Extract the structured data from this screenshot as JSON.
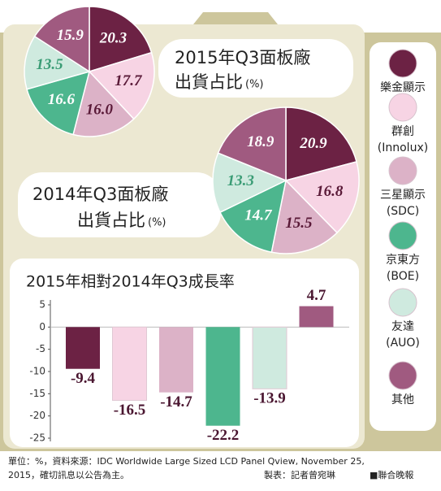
{
  "chart_data": [
    {
      "type": "pie",
      "title": "2015年Q3面板廠",
      "subtitle": "出貨占比",
      "unit": "(%)",
      "categories": [
        "樂金顯示",
        "群創 (Innolux)",
        "三星顯示 (SDC)",
        "京東方 (BOE)",
        "友達 (AUO)",
        "其他"
      ],
      "values": [
        20.3,
        17.7,
        16.0,
        16.6,
        13.5,
        15.9
      ],
      "value_labels": [
        "20.3",
        "17.7",
        "16.0",
        "16.6",
        "13.5",
        "15.9"
      ],
      "colors": [
        "#6c2244",
        "#f7d4e4",
        "#dcb2c7",
        "#4db68e",
        "#cfeadf",
        "#a05a80"
      ],
      "label_colors": [
        "#ffffff",
        "#5a1a38",
        "#5a1a38",
        "#ffffff",
        "#3a9c75",
        "#ffffff"
      ]
    },
    {
      "type": "pie",
      "title": "2014年Q3面板廠",
      "subtitle": "出貨占比",
      "unit": "(%)",
      "categories": [
        "樂金顯示",
        "群創 (Innolux)",
        "三星顯示 (SDC)",
        "京東方 (BOE)",
        "友達 (AUO)",
        "其他"
      ],
      "values": [
        20.9,
        16.8,
        15.5,
        14.7,
        13.3,
        18.9
      ],
      "colors": [
        "#6c2244",
        "#f7d4e4",
        "#dcb2c7",
        "#4db68e",
        "#cfeadf",
        "#a05a80"
      ],
      "label_colors": [
        "#ffffff",
        "#5a1a38",
        "#5a1a38",
        "#ffffff",
        "#3a9c75",
        "#ffffff"
      ]
    },
    {
      "type": "bar",
      "title": "2015年相對2014年Q3成長率",
      "categories": [
        null,
        null,
        null,
        null,
        null,
        null
      ],
      "values": [
        -9.4,
        -16.5,
        -14.7,
        -22.2,
        -13.9,
        4.7
      ],
      "colors": [
        "#6c2244",
        "#f7d4e4",
        "#dcb2c7",
        "#4db68e",
        "#cfeadf",
        "#a05a80"
      ],
      "ylim": [
        -25,
        5
      ],
      "yticks": [
        5,
        0,
        -5,
        -10,
        -15,
        -20,
        -25
      ]
    }
  ],
  "notes": {
    "source": "單位：%，資料來源：IDC Worldwide Large Sized LCD Panel Qview, November 25,",
    "source2": "2015，確切訊息以公告為主。",
    "credit": "製表：記者曾宛琳",
    "publisher": "■聯合晚報"
  }
}
